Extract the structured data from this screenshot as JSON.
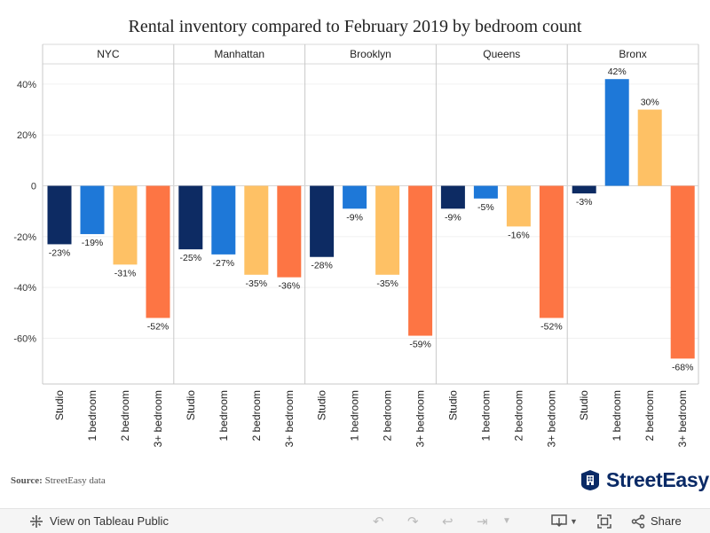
{
  "chart_data": {
    "type": "bar",
    "title": "Rental inventory compared to February 2019 by bedroom count",
    "panels": [
      "NYC",
      "Manhattan",
      "Brooklyn",
      "Queens",
      "Bronx"
    ],
    "categories": [
      "Studio",
      "1 bedroom",
      "2 bedroom",
      "3+ bedroom"
    ],
    "values": [
      [
        -23,
        -19,
        -31,
        -52
      ],
      [
        -25,
        -27,
        -35,
        -36
      ],
      [
        -28,
        -9,
        -35,
        -59
      ],
      [
        -9,
        -5,
        -16,
        -52
      ],
      [
        -3,
        42,
        30,
        -68
      ]
    ],
    "data_labels": [
      [
        "-23%",
        "-19%",
        "-31%",
        "-52%"
      ],
      [
        "-25%",
        "-27%",
        "-35%",
        "-36%"
      ],
      [
        "-28%",
        "-9%",
        "-35%",
        "-59%"
      ],
      [
        "-9%",
        "-5%",
        "-16%",
        "-52%"
      ],
      [
        "-3%",
        "42%",
        "30%",
        "-68%"
      ]
    ],
    "colors": [
      "#0d2b63",
      "#1e78d8",
      "#fec165",
      "#fd7544"
    ],
    "y_ticks": [
      40,
      20,
      0,
      -20,
      -40,
      -60
    ],
    "y_tick_labels": [
      "40%",
      "20%",
      "0",
      "-20%",
      "-40%",
      "-60%"
    ],
    "ylim": [
      -78,
      48
    ],
    "grid": true,
    "legend": "none"
  },
  "source": {
    "label": "Source:",
    "text": "StreetEasy data"
  },
  "brand": {
    "name": "StreetEasy",
    "icon": "building-icon"
  },
  "toolbar": {
    "view_label": "View on Tableau Public",
    "share_label": "Share",
    "icons": [
      "tableau-icon",
      "undo-icon",
      "redo-icon",
      "revert-icon",
      "forward-icon",
      "dropdown-icon",
      "download-icon",
      "fullscreen-icon",
      "share-icon"
    ]
  }
}
